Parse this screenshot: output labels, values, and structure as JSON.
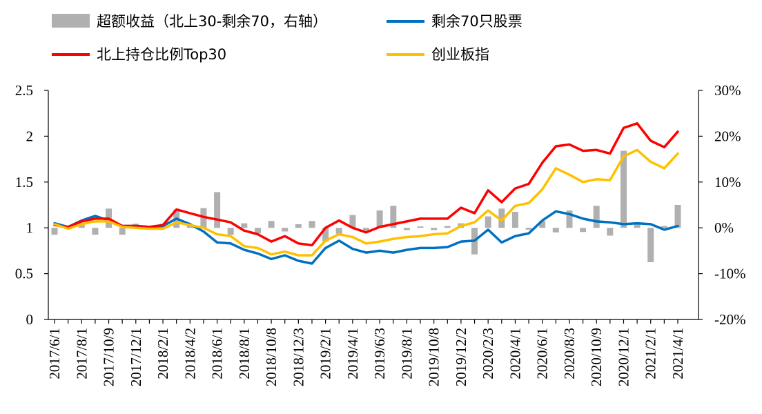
{
  "chart_data": {
    "type": "line",
    "title": "",
    "legend": {
      "placement": "top",
      "entries": [
        {
          "key": "excess",
          "label": "超额收益（北上30-剩余70，右轴）",
          "kind": "bar",
          "color": "#b0b0b0"
        },
        {
          "key": "rest70",
          "label": "剩余70只股票",
          "kind": "line",
          "color": "#0070c0"
        },
        {
          "key": "top30",
          "label": "北上持仓比例Top30",
          "kind": "line",
          "color": "#ff0000"
        },
        {
          "key": "cyb",
          "label": "创业板指",
          "kind": "line",
          "color": "#ffc000"
        }
      ]
    },
    "x_tick_labels": [
      "2017/6/1",
      "2017/8/1",
      "2017/10/9",
      "2017/12/1",
      "2018/2/1",
      "2018/4/2",
      "2018/6/1",
      "2018/8/1",
      "2018/10/8",
      "2018/12/3",
      "2019/2/1",
      "2019/4/1",
      "2019/6/3",
      "2019/8/1",
      "2019/10/8",
      "2019/12/2",
      "2020/2/3",
      "2020/4/1",
      "2020/6/1",
      "2020/8/3",
      "2020/10/9",
      "2020/12/1",
      "2021/2/1",
      "2021/4/1"
    ],
    "left_axis": {
      "min": 0,
      "max": 2.5,
      "ticks": [
        "0",
        "0.5",
        "1",
        "1.5",
        "2",
        "2.5"
      ]
    },
    "right_axis": {
      "min": -20,
      "max": 30,
      "unit": "%",
      "ticks": [
        "-20%",
        "-10%",
        "0%",
        "10%",
        "20%",
        "30%"
      ]
    },
    "series": [
      {
        "key": "rest70",
        "name": "剩余70只股票",
        "color": "#0070c0",
        "axis": "left",
        "values": [
          1.05,
          1.01,
          1.08,
          1.13,
          1.08,
          1.02,
          1.02,
          1.01,
          1.02,
          1.1,
          1.04,
          0.96,
          0.84,
          0.83,
          0.76,
          0.72,
          0.66,
          0.7,
          0.64,
          0.61,
          0.78,
          0.86,
          0.77,
          0.73,
          0.75,
          0.73,
          0.76,
          0.78,
          0.78,
          0.79,
          0.85,
          0.86,
          0.98,
          0.84,
          0.91,
          0.94,
          1.08,
          1.18,
          1.15,
          1.1,
          1.07,
          1.06,
          1.04,
          1.05,
          1.04,
          0.98,
          1.02
        ]
      },
      {
        "key": "top30",
        "name": "北上持仓比例Top30",
        "color": "#ff0000",
        "axis": "left",
        "values": [
          1.03,
          1.01,
          1.07,
          1.1,
          1.1,
          1.02,
          1.02,
          1.01,
          1.03,
          1.2,
          1.16,
          1.12,
          1.09,
          1.06,
          0.97,
          0.93,
          0.85,
          0.91,
          0.83,
          0.81,
          1.0,
          1.08,
          1.0,
          0.95,
          1.01,
          1.04,
          1.07,
          1.1,
          1.1,
          1.1,
          1.22,
          1.16,
          1.41,
          1.28,
          1.43,
          1.48,
          1.71,
          1.89,
          1.91,
          1.84,
          1.85,
          1.81,
          2.09,
          2.14,
          1.95,
          1.88,
          2.05
        ]
      },
      {
        "key": "cyb",
        "name": "创业板指",
        "color": "#ffc000",
        "axis": "left",
        "values": [
          1.04,
          0.99,
          1.04,
          1.07,
          1.07,
          1.01,
          1.0,
          0.99,
          0.99,
          1.06,
          1.03,
          1.0,
          0.93,
          0.91,
          0.8,
          0.78,
          0.71,
          0.74,
          0.7,
          0.7,
          0.86,
          0.93,
          0.9,
          0.83,
          0.85,
          0.88,
          0.9,
          0.91,
          0.93,
          0.94,
          1.02,
          1.06,
          1.19,
          1.08,
          1.24,
          1.27,
          1.42,
          1.65,
          1.58,
          1.5,
          1.53,
          1.52,
          1.78,
          1.85,
          1.72,
          1.65,
          1.81
        ]
      },
      {
        "key": "excess",
        "name": "超额收益（北上30-剩余70，右轴）",
        "color": "#b0b0b0",
        "axis": "right",
        "type": "bar",
        "values": [
          -1.5,
          0.5,
          0.7,
          -1.5,
          4.2,
          -1.5,
          0.9,
          0.2,
          0.9,
          4.0,
          0.8,
          4.3,
          7.8,
          -1.5,
          1.0,
          -1.2,
          1.5,
          -0.8,
          0.8,
          1.5,
          -3.0,
          -1.3,
          2.8,
          -0.6,
          3.8,
          4.8,
          -0.5,
          0.3,
          -0.5,
          0.4,
          1.0,
          -5.8,
          2.5,
          4.2,
          3.5,
          -0.4,
          1.5,
          -1.0,
          3.8,
          -0.9,
          4.8,
          -1.7,
          16.8,
          1.2,
          -7.5,
          0.4,
          5.0
        ]
      }
    ]
  }
}
